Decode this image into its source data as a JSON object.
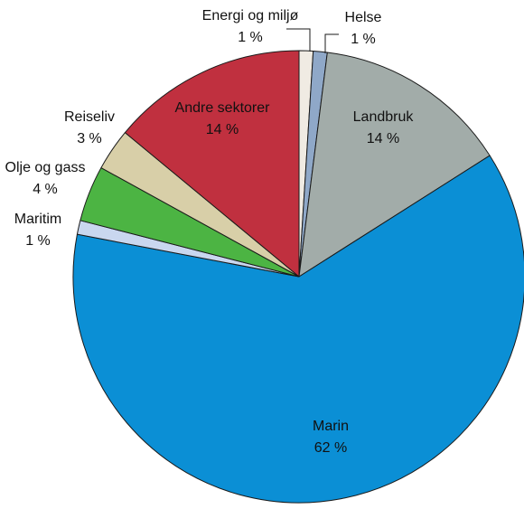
{
  "chart_data": {
    "type": "pie",
    "title": "",
    "unit": "%",
    "slices": [
      {
        "name": "Energi og miljø",
        "value": 1,
        "value_label": "1 %",
        "color": "#f0ebe3"
      },
      {
        "name": "Helse",
        "value": 1,
        "value_label": "1 %",
        "color": "#8fa8c8"
      },
      {
        "name": "Landbruk",
        "value": 14,
        "value_label": "14 %",
        "color": "#a2aca9"
      },
      {
        "name": "Marin",
        "value": 62,
        "value_label": "62 %",
        "color": "#0b8fd5"
      },
      {
        "name": "Maritim",
        "value": 1,
        "value_label": "1 %",
        "color": "#c9d7ef"
      },
      {
        "name": "Olje og gass",
        "value": 4,
        "value_label": "4 %",
        "color": "#4cb443"
      },
      {
        "name": "Reiseliv",
        "value": 3,
        "value_label": "3 %",
        "color": "#d8cfa8"
      },
      {
        "name": "Andre sektorer",
        "value": 14,
        "value_label": "14 %",
        "color": "#c0303f"
      }
    ]
  }
}
